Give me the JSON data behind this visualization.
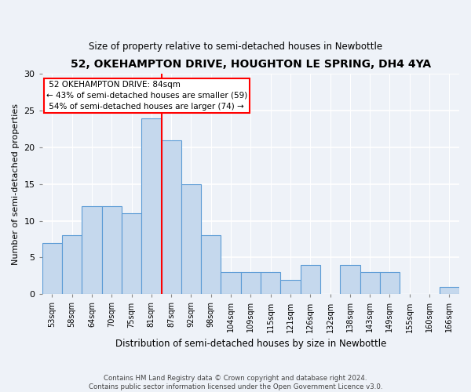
{
  "title": "52, OKEHAMPTON DRIVE, HOUGHTON LE SPRING, DH4 4YA",
  "subtitle": "Size of property relative to semi-detached houses in Newbottle",
  "xlabel": "Distribution of semi-detached houses by size in Newbottle",
  "ylabel": "Number of semi-detached properties",
  "categories": [
    "53sqm",
    "58sqm",
    "64sqm",
    "70sqm",
    "75sqm",
    "81sqm",
    "87sqm",
    "92sqm",
    "98sqm",
    "104sqm",
    "109sqm",
    "115sqm",
    "121sqm",
    "126sqm",
    "132sqm",
    "138sqm",
    "143sqm",
    "149sqm",
    "155sqm",
    "160sqm",
    "166sqm"
  ],
  "values": [
    7,
    8,
    12,
    12,
    11,
    24,
    21,
    15,
    8,
    3,
    3,
    3,
    2,
    4,
    0,
    4,
    3,
    3,
    0,
    0,
    1
  ],
  "bar_color": "#c5d8ed",
  "bar_edge_color": "#5b9bd5",
  "property_label": "52 OKEHAMPTON DRIVE: 84sqm",
  "pct_smaller": 43,
  "n_smaller": 59,
  "pct_larger": 54,
  "n_larger": 74,
  "vline_x_index": 5,
  "vline_color": "red",
  "annotation_box_color": "white",
  "annotation_box_edge": "red",
  "ylim": [
    0,
    30
  ],
  "yticks": [
    0,
    5,
    10,
    15,
    20,
    25,
    30
  ],
  "footer_line1": "Contains HM Land Registry data © Crown copyright and database right 2024.",
  "footer_line2": "Contains public sector information licensed under the Open Government Licence v3.0.",
  "bg_color": "#eef2f8",
  "grid_color": "white"
}
